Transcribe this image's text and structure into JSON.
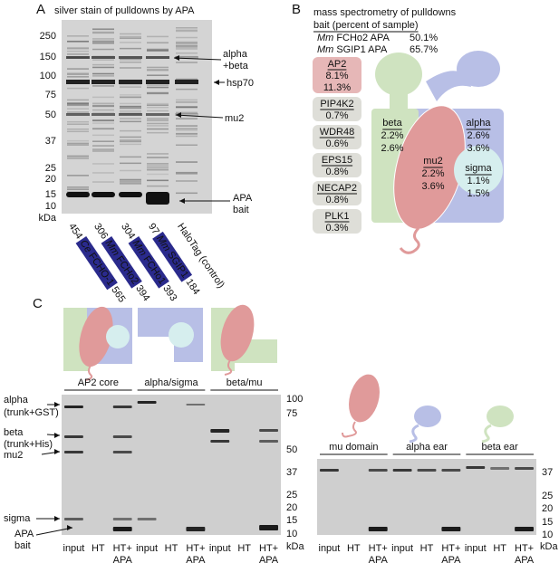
{
  "panel_a": {
    "label": "A",
    "title": "silver stain of pulldowns by APA",
    "mw_markers": [
      "250",
      "150",
      "100",
      "75",
      "50",
      "37",
      "25",
      "20",
      "15",
      "10"
    ],
    "mw_unit": "kDa",
    "annotations": [
      "alpha",
      "+beta",
      "hsp70",
      "mu2",
      "APA",
      "bait"
    ],
    "lanes": [
      {
        "start": "454",
        "species": "Ce",
        "protein": "FCHO-1",
        "end": "565"
      },
      {
        "start": "306",
        "species": "Mm",
        "protein": "FCHo2",
        "end": "394"
      },
      {
        "start": "304",
        "species": "Mm",
        "protein": "FCHo1",
        "end": "393"
      },
      {
        "start": "97",
        "species": "Mm",
        "protein": "SGIP1",
        "end": "184"
      },
      {
        "control": "HaloTag (control)"
      }
    ]
  },
  "panel_b": {
    "label": "B",
    "title": "mass spectrometry of pulldowns",
    "bait_heading": "bait (percent of sample)",
    "baits": [
      {
        "species": "Mm",
        "name": "FCHo2 APA",
        "percent": "50.1%"
      },
      {
        "species": "Mm",
        "name": "SGIP1 APA",
        "percent": "65.7%"
      }
    ],
    "proteins": [
      {
        "name": "AP2",
        "values": [
          "8.1%",
          "11.3%"
        ]
      },
      {
        "name": "PIP4K2",
        "values": [
          "0.7%",
          null
        ]
      },
      {
        "name": "WDR48",
        "values": [
          "0.6%",
          null
        ]
      },
      {
        "name": "EPS15",
        "values": [
          null,
          "0.8%"
        ]
      },
      {
        "name": "NECAP2",
        "values": [
          null,
          "0.8%"
        ]
      },
      {
        "name": "PLK1",
        "values": [
          null,
          "0.3%"
        ]
      }
    ],
    "subunits": [
      {
        "name": "beta",
        "values": [
          "2.2%",
          "2.6%"
        ]
      },
      {
        "name": "alpha",
        "values": [
          "2.6%",
          "3.6%"
        ]
      },
      {
        "name": "mu2",
        "values": [
          "2.2%",
          "3.6%"
        ]
      },
      {
        "name": "sigma",
        "values": [
          "1.1%",
          "1.5%"
        ]
      }
    ]
  },
  "panel_c": {
    "label": "C",
    "gel_left": {
      "groups": [
        "AP2 core",
        "alpha/sigma",
        "beta/mu"
      ],
      "lane_labels": [
        [
          "input"
        ],
        [
          "HT"
        ],
        [
          "HT+",
          "APA"
        ]
      ],
      "band_labels": [
        [
          "alpha",
          "(trunk+GST)"
        ],
        [
          "beta",
          "(trunk+His)"
        ],
        [
          "mu2"
        ],
        [
          "sigma"
        ],
        [
          "APA",
          "bait"
        ]
      ],
      "mw_markers": [
        "100",
        "75",
        "50",
        "37",
        "25",
        "20",
        "15",
        "10"
      ],
      "mw_unit": "kDa"
    },
    "gel_right": {
      "groups": [
        "mu domain",
        "alpha ear",
        "beta ear"
      ],
      "lane_labels": [
        [
          "input"
        ],
        [
          "HT"
        ],
        [
          "HT+",
          "APA"
        ]
      ],
      "mw_markers": [
        "37",
        "25",
        "20",
        "15",
        "10"
      ],
      "mw_unit": "kDa"
    }
  }
}
